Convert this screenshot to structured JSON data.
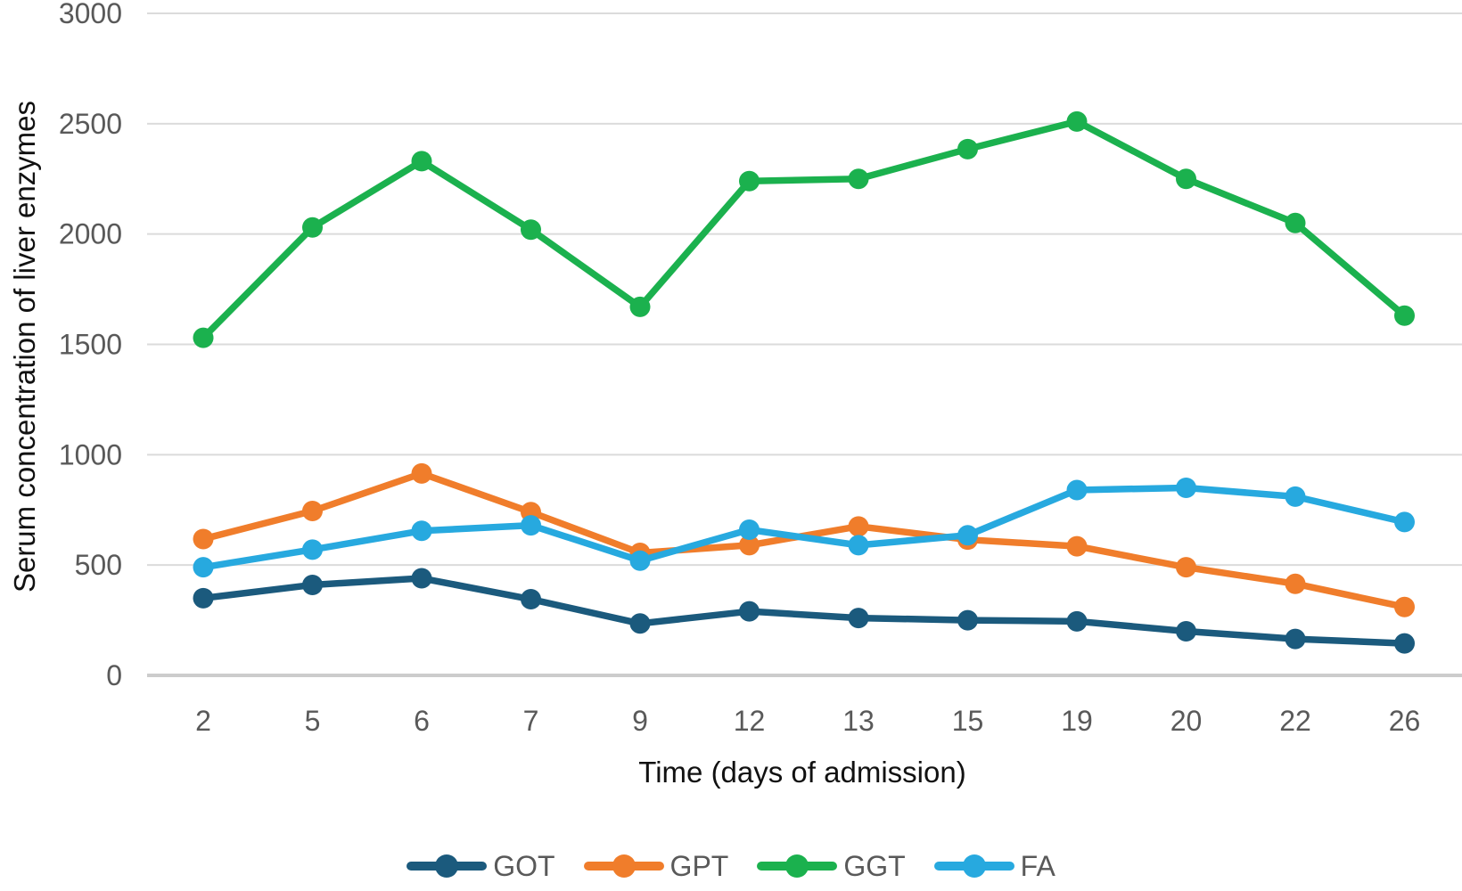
{
  "chart_data": {
    "type": "line",
    "title": "",
    "xlabel": "Time (days of admission)",
    "ylabel": "Serum concentration of liver enzymes",
    "categories": [
      "2",
      "5",
      "6",
      "7",
      "9",
      "12",
      "13",
      "15",
      "19",
      "20",
      "22",
      "26"
    ],
    "yticks": [
      0,
      500,
      1000,
      1500,
      2000,
      2500,
      3000
    ],
    "ylim": [
      0,
      3000
    ],
    "grid": true,
    "legend_position": "bottom-center",
    "series": [
      {
        "name": "GOT",
        "color": "#1B5A7D",
        "values": [
          350,
          410,
          440,
          345,
          235,
          290,
          260,
          250,
          245,
          200,
          165,
          145
        ]
      },
      {
        "name": "GPT",
        "color": "#F07D2B",
        "values": [
          618,
          745,
          915,
          740,
          555,
          590,
          675,
          615,
          585,
          490,
          415,
          310
        ]
      },
      {
        "name": "GGT",
        "color": "#1BB14E",
        "values": [
          1530,
          2030,
          2330,
          2020,
          1670,
          2240,
          2250,
          2385,
          2510,
          2250,
          2050,
          1630
        ]
      },
      {
        "name": "FA",
        "color": "#27A9DF",
        "values": [
          490,
          570,
          655,
          680,
          520,
          660,
          590,
          635,
          840,
          850,
          810,
          695
        ]
      }
    ]
  }
}
